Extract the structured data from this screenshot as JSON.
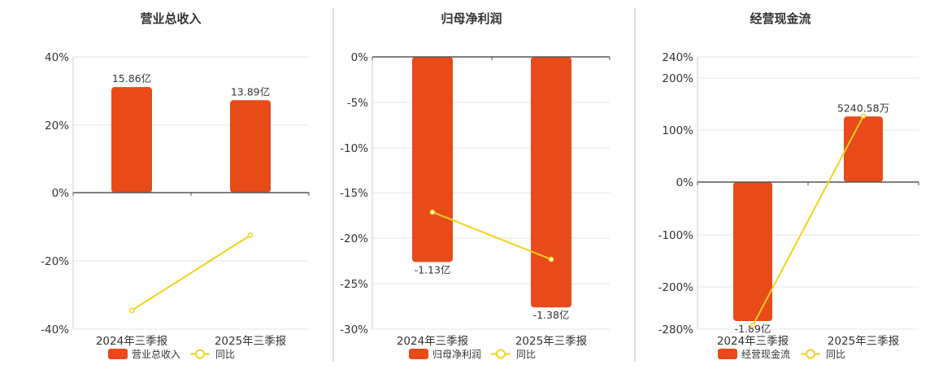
{
  "chart_data": [
    {
      "type": "bar",
      "title": "营业总收入",
      "categories": [
        "2024年三季报",
        "2025年三季报"
      ],
      "yticks": [
        "40%",
        "20%",
        "0%",
        "-20%",
        "-40%"
      ],
      "ylim": [
        -40,
        40
      ],
      "series": [
        {
          "name": "营业总收入",
          "type": "bar",
          "values": [
            15.86,
            13.89
          ],
          "labels": [
            "15.86亿",
            "13.89亿"
          ],
          "unit": "亿"
        },
        {
          "name": "同比",
          "type": "line",
          "values": [
            -34.5,
            -12.4
          ],
          "unit": "%"
        }
      ],
      "legend": "bottom-center",
      "grid": true
    },
    {
      "type": "bar",
      "title": "归母净利润",
      "categories": [
        "2024年三季报",
        "2025年三季报"
      ],
      "yticks": [
        "0%",
        "-5%",
        "-10%",
        "-15%",
        "-20%",
        "-25%",
        "-30%"
      ],
      "ylim": [
        -30,
        0
      ],
      "series": [
        {
          "name": "归母净利润",
          "type": "bar",
          "values": [
            -1.13,
            -1.38
          ],
          "labels": [
            "-1.13亿",
            "-1.38亿"
          ],
          "unit": "亿"
        },
        {
          "name": "同比",
          "type": "line",
          "values": [
            -17.1,
            -22.3
          ],
          "unit": "%"
        }
      ],
      "legend": "bottom-center",
      "grid": true
    },
    {
      "type": "bar",
      "title": "经营现金流",
      "categories": [
        "2024年三季报",
        "2025年三季报"
      ],
      "yticks": [
        "240%",
        "200%",
        "100%",
        "0%",
        "-100%",
        "-200%",
        "-280%"
      ],
      "ylim": [
        -280,
        240
      ],
      "series": [
        {
          "name": "经营现金流",
          "type": "bar",
          "values": [
            -1.89,
            0.524058
          ],
          "labels": [
            "-1.89亿",
            "5240.58万"
          ],
          "unit": "亿"
        },
        {
          "name": "同比",
          "type": "line",
          "values": [
            -273,
            127
          ],
          "unit": "%"
        }
      ],
      "legend": "bottom-center",
      "grid": true
    }
  ],
  "colors": {
    "bar": "#e84a1a",
    "line": "#f2d11c",
    "axis": "#555555",
    "grid": "#e6e6e6",
    "divider": "#bbbbbb",
    "text": "#333333"
  }
}
